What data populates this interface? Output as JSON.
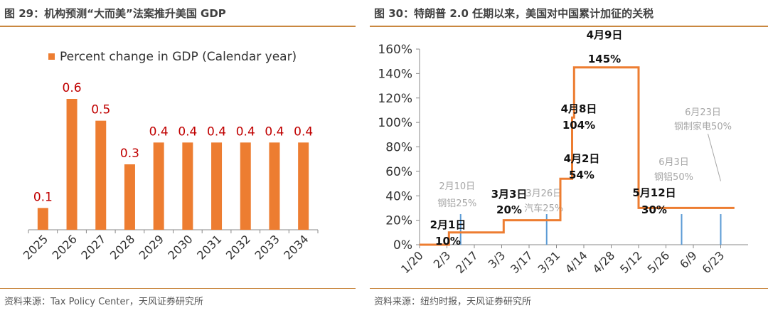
{
  "left": {
    "figure_title": "图 29：机构预测“大而美”法案推升美国 GDP",
    "source": "资料来源：Tax Policy Center，天风证券研究所"
  },
  "right": {
    "figure_title": "图 30：特朗普 2.0 任期以来，美国对中国累计加征的关税",
    "source": "资料来源：纽约时报，天风证券研究所"
  },
  "colors": {
    "accent": "#ed7d31",
    "label": "#c00000",
    "marker": "#5b9bd5",
    "gray": "#a6a6a6",
    "rule": "#c9873f"
  },
  "chart_data": [
    {
      "type": "bar",
      "categories": [
        "2025",
        "2026",
        "2027",
        "2028",
        "2029",
        "2030",
        "2031",
        "2032",
        "2033",
        "2034"
      ],
      "series": [
        {
          "name": "Percent change in GDP (Calendar year)",
          "values": [
            0.1,
            0.6,
            0.5,
            0.3,
            0.4,
            0.4,
            0.4,
            0.4,
            0.4,
            0.4
          ]
        }
      ],
      "data_labels": [
        "0.1",
        "0.6",
        "0.5",
        "0.3",
        "0.4",
        "0.4",
        "0.4",
        "0.4",
        "0.4",
        "0.4"
      ],
      "title": "",
      "xlabel": "",
      "ylabel": "",
      "ylim": [
        0,
        0.75
      ],
      "legend_position": "top",
      "grid": false
    },
    {
      "type": "line",
      "title": "",
      "xlabel": "",
      "ylabel": "",
      "x_ticks": [
        "1/20",
        "2/3",
        "2/17",
        "3/3",
        "3/17",
        "3/31",
        "4/14",
        "4/28",
        "5/12",
        "5/26",
        "6/9",
        "6/23"
      ],
      "y_ticks": [
        "0%",
        "20%",
        "40%",
        "60%",
        "80%",
        "100%",
        "120%",
        "140%",
        "160%"
      ],
      "ylim": [
        0,
        160
      ],
      "grid": false,
      "series": [
        {
          "x": [
            "1/20",
            "2/4",
            "2/4",
            "3/4",
            "3/4",
            "4/2",
            "4/2",
            "4/8",
            "4/8",
            "4/9",
            "4/9",
            "5/12",
            "5/12",
            "6/30"
          ],
          "y": [
            0,
            0,
            10,
            10,
            20,
            20,
            54,
            54,
            104,
            104,
            145,
            145,
            30,
            30
          ]
        }
      ],
      "annotations": [
        {
          "date": "2/1",
          "y": 10,
          "lines": [
            "2月1日",
            "10%"
          ],
          "style": "bold"
        },
        {
          "date": "3/3",
          "y": 20,
          "lines": [
            "3月3日",
            "20%"
          ],
          "style": "bold"
        },
        {
          "date": "4/2",
          "y": 54,
          "lines": [
            "4月2日",
            "54%"
          ],
          "style": "bold"
        },
        {
          "date": "4/8",
          "y": 104,
          "lines": [
            "4月8日",
            "104%"
          ],
          "style": "bold"
        },
        {
          "date": "4/9",
          "y": 145,
          "lines": [
            "4月9日",
            "145%"
          ],
          "style": "bold"
        },
        {
          "date": "5/12",
          "y": 30,
          "lines": [
            "5月12日",
            "30%"
          ],
          "style": "bold"
        }
      ],
      "event_markers": [
        {
          "date": "2/10",
          "lines": [
            "2月10日",
            "钢铝25%"
          ]
        },
        {
          "date": "3/26",
          "lines": [
            "3月26日",
            "汽车25%"
          ]
        },
        {
          "date": "6/3",
          "lines": [
            "6月3日",
            "钢铝50%"
          ]
        },
        {
          "date": "6/23",
          "lines": [
            "6月23日",
            "钢制家电50%"
          ]
        }
      ]
    }
  ]
}
